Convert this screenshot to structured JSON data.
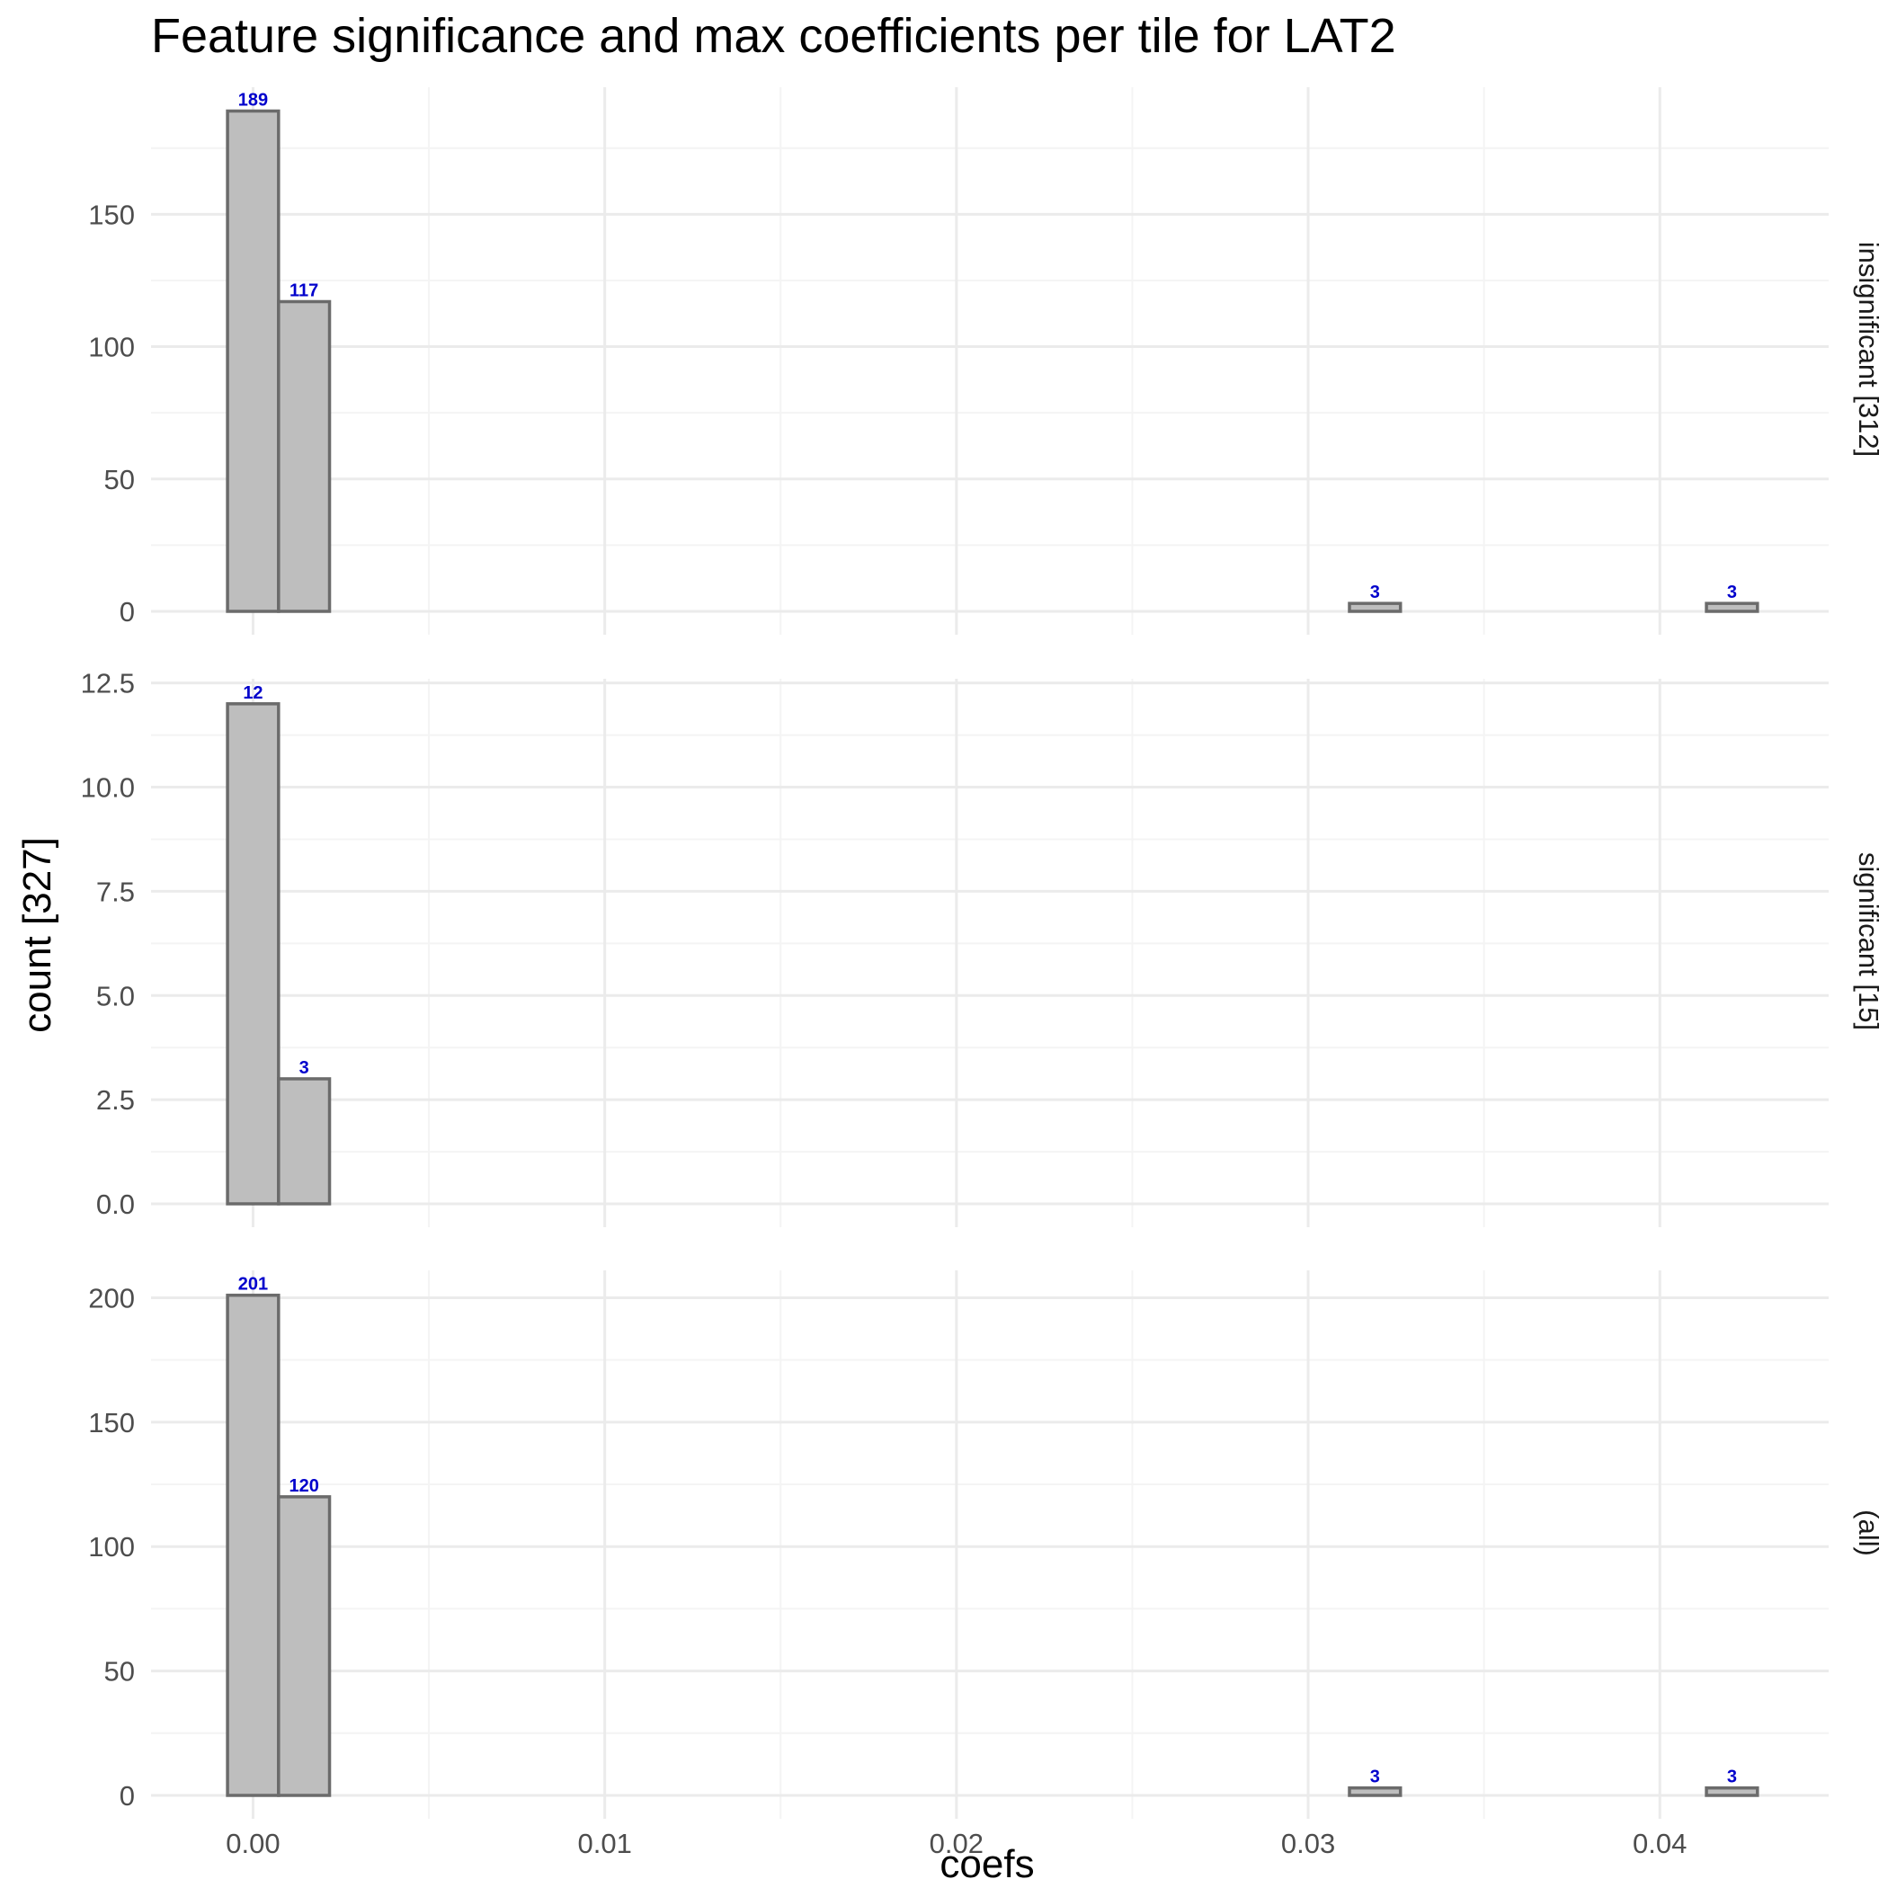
{
  "chart_data": {
    "type": "bar",
    "title": "Feature significance and max coefficients per tile for LAT2",
    "xlabel": "coefs",
    "ylabel": "count [327]",
    "xlim": [
      -0.0029,
      0.0448
    ],
    "x_ticks": [
      0.0,
      0.01,
      0.02,
      0.03,
      0.04
    ],
    "x_tick_labels": [
      "0.00",
      "0.01",
      "0.02",
      "0.03",
      "0.04"
    ],
    "bins": {
      "width": 0.00145,
      "first_center": 0.0,
      "count": 30
    },
    "facets": [
      {
        "strip_label": "insignificant [312]",
        "ylim": [
          0,
          198
        ],
        "y_ticks": [
          0,
          50,
          100,
          150
        ],
        "y_tick_labels": [
          "0",
          "50",
          "100",
          "150"
        ],
        "values": [
          189,
          117,
          0,
          0,
          0,
          0,
          0,
          0,
          0,
          0,
          0,
          0,
          0,
          0,
          0,
          0,
          0,
          0,
          0,
          0,
          0,
          0,
          3,
          0,
          0,
          0,
          0,
          0,
          0,
          3
        ],
        "labels": [
          {
            "bin": 0,
            "text": "189"
          },
          {
            "bin": 1,
            "text": "117"
          },
          {
            "bin": 22,
            "text": "3"
          },
          {
            "bin": 29,
            "text": "3"
          }
        ]
      },
      {
        "strip_label": "significant [15]",
        "ylim": [
          0,
          12.6
        ],
        "y_ticks": [
          0,
          2.5,
          5,
          7.5,
          10,
          12.5
        ],
        "y_tick_labels": [
          "0.0",
          "2.5",
          "5.0",
          "7.5",
          "10.0",
          "12.5"
        ],
        "values": [
          12,
          3,
          0,
          0,
          0,
          0,
          0,
          0,
          0,
          0,
          0,
          0,
          0,
          0,
          0,
          0,
          0,
          0,
          0,
          0,
          0,
          0,
          0,
          0,
          0,
          0,
          0,
          0,
          0,
          0
        ],
        "labels": [
          {
            "bin": 0,
            "text": "12"
          },
          {
            "bin": 1,
            "text": "3"
          }
        ]
      },
      {
        "strip_label": "(all)",
        "ylim": [
          0,
          211
        ],
        "y_ticks": [
          0,
          50,
          100,
          150,
          200
        ],
        "y_tick_labels": [
          "0",
          "50",
          "100",
          "150",
          "200"
        ],
        "values": [
          201,
          120,
          0,
          0,
          0,
          0,
          0,
          0,
          0,
          0,
          0,
          0,
          0,
          0,
          0,
          0,
          0,
          0,
          0,
          0,
          0,
          0,
          3,
          0,
          0,
          0,
          0,
          0,
          0,
          3
        ],
        "labels": [
          {
            "bin": 0,
            "text": "201"
          },
          {
            "bin": 1,
            "text": "120"
          },
          {
            "bin": 22,
            "text": "3"
          },
          {
            "bin": 29,
            "text": "3"
          }
        ]
      }
    ],
    "grid": true,
    "colors": {
      "bar_fill": "#bebebe",
      "bar_stroke": "#6b6b6b",
      "label": "#0000cc",
      "grid_major": "#ebebeb",
      "grid_minor": "#f4f4f4"
    }
  }
}
